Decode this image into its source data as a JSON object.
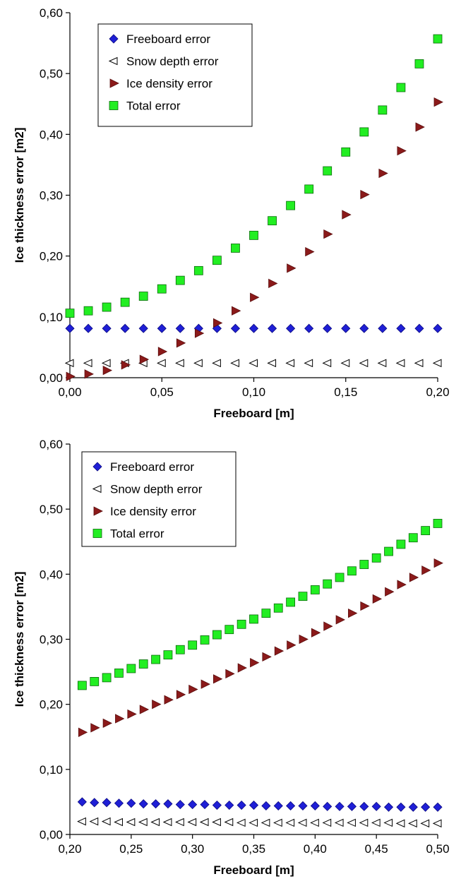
{
  "chart_data": [
    {
      "type": "scatter",
      "xlabel": "Freeboard [m]",
      "ylabel": "Ice thickness error [m2]",
      "xlim": [
        0,
        0.2
      ],
      "ylim": [
        0,
        0.6
      ],
      "xticks": [
        0,
        0.05,
        0.1,
        0.15,
        0.2
      ],
      "xtick_labels": [
        "0,00",
        "0,05",
        "0,10",
        "0,15",
        "0,20"
      ],
      "yticks": [
        0,
        0.1,
        0.2,
        0.3,
        0.4,
        0.5,
        0.6
      ],
      "ytick_labels": [
        "0,00",
        "0,10",
        "0,20",
        "0,30",
        "0,40",
        "0,50",
        "0,60"
      ],
      "grid": false,
      "legend_position": "top-left",
      "x": [
        0,
        0.01,
        0.02,
        0.03,
        0.04,
        0.05,
        0.06,
        0.07,
        0.08,
        0.09,
        0.1,
        0.11,
        0.12,
        0.13,
        0.14,
        0.15,
        0.16,
        0.17,
        0.18,
        0.19,
        0.2
      ],
      "series": [
        {
          "name": "Freeboard error",
          "marker": "diamond",
          "color": "#1f1fd6",
          "values": [
            0.081,
            0.081,
            0.081,
            0.081,
            0.081,
            0.081,
            0.081,
            0.081,
            0.081,
            0.081,
            0.081,
            0.081,
            0.081,
            0.081,
            0.081,
            0.081,
            0.081,
            0.081,
            0.081,
            0.081,
            0.081
          ]
        },
        {
          "name": "Snow depth error",
          "marker": "triangle-left",
          "color": "#ffffff",
          "values": [
            0.024,
            0.024,
            0.024,
            0.024,
            0.024,
            0.024,
            0.024,
            0.024,
            0.024,
            0.024,
            0.024,
            0.024,
            0.024,
            0.024,
            0.024,
            0.024,
            0.024,
            0.024,
            0.024,
            0.024,
            0.024
          ]
        },
        {
          "name": "Ice density error",
          "marker": "triangle-right",
          "color": "#8b1a1a",
          "values": [
            0.002,
            0.006,
            0.012,
            0.021,
            0.03,
            0.043,
            0.057,
            0.073,
            0.09,
            0.11,
            0.132,
            0.155,
            0.18,
            0.207,
            0.236,
            0.268,
            0.301,
            0.336,
            0.373,
            0.412,
            0.453
          ]
        },
        {
          "name": "Total error",
          "marker": "square",
          "color": "#22ee22",
          "values": [
            0.106,
            0.11,
            0.116,
            0.124,
            0.134,
            0.146,
            0.16,
            0.176,
            0.193,
            0.213,
            0.234,
            0.258,
            0.283,
            0.31,
            0.34,
            0.371,
            0.404,
            0.44,
            0.477,
            0.516,
            0.557
          ]
        }
      ]
    },
    {
      "type": "scatter",
      "xlabel": "Freeboard [m]",
      "ylabel": "Ice thickness error [m2]",
      "xlim": [
        0.2,
        0.5
      ],
      "ylim": [
        0,
        0.6
      ],
      "xticks": [
        0.2,
        0.25,
        0.3,
        0.35,
        0.4,
        0.45,
        0.5
      ],
      "xtick_labels": [
        "0,20",
        "0,25",
        "0,30",
        "0,35",
        "0,40",
        "0,45",
        "0,50"
      ],
      "yticks": [
        0,
        0.1,
        0.2,
        0.3,
        0.4,
        0.5,
        0.6
      ],
      "ytick_labels": [
        "0,00",
        "0,10",
        "0,20",
        "0,30",
        "0,40",
        "0,50",
        "0,60"
      ],
      "grid": false,
      "legend_position": "top-left",
      "x": [
        0.21,
        0.22,
        0.23,
        0.24,
        0.25,
        0.26,
        0.27,
        0.28,
        0.29,
        0.3,
        0.31,
        0.32,
        0.33,
        0.34,
        0.35,
        0.36,
        0.37,
        0.38,
        0.39,
        0.4,
        0.41,
        0.42,
        0.43,
        0.44,
        0.45,
        0.46,
        0.47,
        0.48,
        0.49,
        0.5
      ],
      "series": [
        {
          "name": "Freeboard error",
          "marker": "diamond",
          "color": "#1f1fd6",
          "values": [
            0.05,
            0.049,
            0.049,
            0.048,
            0.048,
            0.047,
            0.047,
            0.047,
            0.046,
            0.046,
            0.046,
            0.045,
            0.045,
            0.045,
            0.045,
            0.044,
            0.044,
            0.044,
            0.044,
            0.044,
            0.043,
            0.043,
            0.043,
            0.043,
            0.043,
            0.042,
            0.042,
            0.042,
            0.042,
            0.042
          ]
        },
        {
          "name": "Snow depth error",
          "marker": "triangle-left",
          "color": "#ffffff",
          "values": [
            0.02,
            0.02,
            0.02,
            0.019,
            0.019,
            0.019,
            0.019,
            0.019,
            0.019,
            0.019,
            0.019,
            0.019,
            0.019,
            0.018,
            0.018,
            0.018,
            0.018,
            0.018,
            0.018,
            0.018,
            0.018,
            0.018,
            0.018,
            0.018,
            0.018,
            0.018,
            0.017,
            0.017,
            0.017,
            0.017
          ]
        },
        {
          "name": "Ice density error",
          "marker": "triangle-right",
          "color": "#8b1a1a",
          "values": [
            0.157,
            0.164,
            0.171,
            0.178,
            0.185,
            0.192,
            0.2,
            0.207,
            0.215,
            0.223,
            0.231,
            0.239,
            0.247,
            0.256,
            0.264,
            0.273,
            0.282,
            0.291,
            0.3,
            0.31,
            0.32,
            0.33,
            0.34,
            0.351,
            0.362,
            0.373,
            0.384,
            0.395,
            0.406,
            0.417
          ]
        },
        {
          "name": "Total error",
          "marker": "square",
          "color": "#22ee22",
          "values": [
            0.229,
            0.235,
            0.241,
            0.248,
            0.255,
            0.262,
            0.269,
            0.276,
            0.284,
            0.291,
            0.299,
            0.307,
            0.315,
            0.323,
            0.331,
            0.34,
            0.348,
            0.357,
            0.366,
            0.376,
            0.385,
            0.395,
            0.405,
            0.415,
            0.425,
            0.435,
            0.446,
            0.456,
            0.467,
            0.478
          ]
        }
      ]
    }
  ]
}
